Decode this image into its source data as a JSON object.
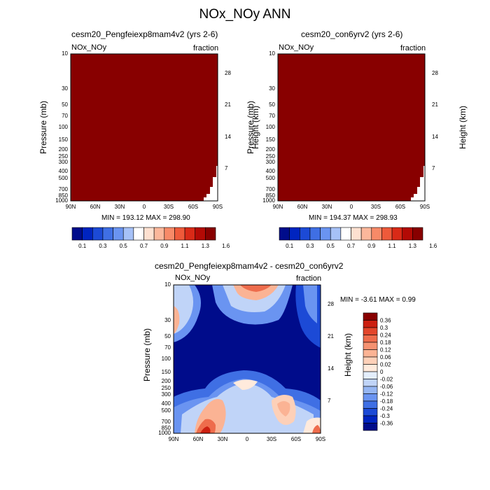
{
  "title": "NOx_NOy ANN",
  "panels": [
    {
      "title": "cesm20_Pengfeiexp8mam4v2 (yrs 2-6)",
      "left_label": "NOx_NOy",
      "right_label": "fraction",
      "y_left_label": "Pressure (mb)",
      "y_right_label": "Height (km)",
      "minmax": "MIN = 193.12  MAX = 298.90",
      "fill_color": "#880000"
    },
    {
      "title": "cesm20_con6yrv2 (yrs 2-6)",
      "left_label": "NOx_NOy",
      "right_label": "fraction",
      "y_left_label": "Pressure (mb)",
      "y_right_label": "Height (km)",
      "minmax": "MIN = 194.37  MAX = 298.93",
      "fill_color": "#880000"
    },
    {
      "title": "cesm20_Pengfeiexp8mam4v2 - cesm20_con6yrv2",
      "left_label": "NOx_NOy",
      "right_label": "fraction",
      "y_left_label": "Pressure (mb)",
      "y_right_label": "Height (km)",
      "minmax": "MIN =  -3.61  MAX =   0.99",
      "fill_color": "#000c8b"
    }
  ],
  "x_ticks": [
    "90N",
    "60N",
    "30N",
    "0",
    "30S",
    "60S",
    "90S"
  ],
  "pressure_ticks": [
    "10",
    "30",
    "50",
    "70",
    "100",
    "150",
    "200",
    "250",
    "300",
    "400",
    "500",
    "700",
    "850",
    "1000"
  ],
  "height_ticks": [
    "28",
    "21",
    "14",
    "7"
  ],
  "colorbar_top": {
    "colors": [
      "#000c8b",
      "#0024c0",
      "#1c4ad6",
      "#3f6fe4",
      "#6a94f1",
      "#a6c1f7",
      "#ffffff",
      "#fde0d0",
      "#fbb79b",
      "#f78a68",
      "#ee5a3a",
      "#d92a17",
      "#b30a05",
      "#880000"
    ],
    "labels": [
      "0.1",
      "0.3",
      "0.5",
      "0.7",
      "0.9",
      "1.1",
      "1.3",
      "1.6"
    ]
  },
  "colorbar_diff": {
    "colors": [
      "#000c8b",
      "#0024c0",
      "#1c4ad6",
      "#3f6fe4",
      "#6a94f1",
      "#95b6f3",
      "#c0d4f8",
      "#e4eefc",
      "#ffeadc",
      "#fdd0b8",
      "#fbb394",
      "#f59271",
      "#ee6c4c",
      "#e3462b",
      "#cc2011",
      "#880000"
    ],
    "labels": [
      "0.36",
      "0.3",
      "0.24",
      "0.18",
      "0.12",
      "0.06",
      "0.02",
      "0",
      "-0.02",
      "-0.06",
      "-0.12",
      "-0.18",
      "-0.24",
      "-0.3",
      "-0.36"
    ]
  },
  "chart_data": [
    {
      "type": "heatmap",
      "title": "cesm20_Pengfeiexp8mam4v2 (yrs 2-6)",
      "xlabel": "",
      "ylabel": "Pressure (mb)",
      "y2label": "Height (km)",
      "x_categories": [
        "90N",
        "60N",
        "30N",
        "0",
        "30S",
        "60S",
        "90S"
      ],
      "xlim": [
        90,
        -90
      ],
      "ylim": [
        1000,
        10
      ],
      "yscale": "log",
      "min": 193.12,
      "max": 298.9,
      "field": "uniform highest color band except small white notch near 90S, 700-1000 mb"
    },
    {
      "type": "heatmap",
      "title": "cesm20_con6yrv2 (yrs 2-6)",
      "xlabel": "",
      "ylabel": "Pressure (mb)",
      "y2label": "Height (km)",
      "x_categories": [
        "90N",
        "60N",
        "30N",
        "0",
        "30S",
        "60S",
        "90S"
      ],
      "xlim": [
        90,
        -90
      ],
      "ylim": [
        1000,
        10
      ],
      "yscale": "log",
      "min": 194.37,
      "max": 298.93,
      "field": "uniform highest color band except small white notch near 90S, 700-1000 mb"
    },
    {
      "type": "heatmap",
      "title": "cesm20_Pengfeiexp8mam4v2 - cesm20_con6yrv2",
      "xlabel": "",
      "ylabel": "Pressure (mb)",
      "y2label": "Height (km)",
      "x_categories": [
        "90N",
        "60N",
        "30N",
        "0",
        "30S",
        "60S",
        "90S"
      ],
      "xlim": [
        90,
        -90
      ],
      "ylim": [
        1000,
        10
      ],
      "yscale": "log",
      "min": -3.61,
      "max": 0.99,
      "contour_levels": [
        -0.36,
        -0.3,
        -0.24,
        -0.18,
        -0.12,
        -0.06,
        -0.02,
        0,
        0.02,
        0.06,
        0.12,
        0.18,
        0.24,
        0.3,
        0.36
      ],
      "regions": [
        {
          "lat": [
            90,
            75
          ],
          "p": [
            10,
            40
          ],
          "value": 0.06
        },
        {
          "lat": [
            15,
            -30
          ],
          "p": [
            10,
            14
          ],
          "value": 0.12
        },
        {
          "lat": [
            20,
            -30
          ],
          "p": [
            190,
            230
          ],
          "value": 0.06
        },
        {
          "lat": [
            60,
            40
          ],
          "p": [
            450,
            900
          ],
          "value": 0.18
        },
        {
          "lat": [
            65,
            55
          ],
          "p": [
            750,
            1000
          ],
          "value": 0.3
        },
        {
          "lat": [
            -25,
            -50
          ],
          "p": [
            380,
            700
          ],
          "value": 0.06
        },
        {
          "lat": [
            60,
            30
          ],
          "p": [
            10,
            100
          ],
          "value": -0.36
        }
      ]
    }
  ]
}
